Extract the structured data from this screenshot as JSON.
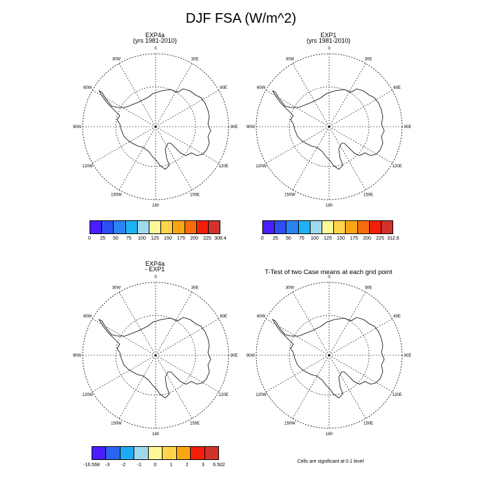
{
  "title": "DJF FSA (W/m^2)",
  "panels": [
    {
      "id": "p1",
      "title_lines": [
        "EXP4a",
        "(yrs 1981-2010)"
      ]
    },
    {
      "id": "p2",
      "title_lines": [
        "EXP1",
        "(yrs 1981-2010)"
      ]
    },
    {
      "id": "p3",
      "title_lines": [
        "EXP4a",
        "- EXP1"
      ]
    },
    {
      "id": "p4",
      "title_lines": [
        "T-Test of two Case means at each grid point"
      ]
    }
  ],
  "lon_labels": [
    "0",
    "30E",
    "60E",
    "90E",
    "120E",
    "150E",
    "180",
    "150W",
    "120W",
    "90W",
    "60W",
    "30W"
  ],
  "colorbars": [
    {
      "panel": "p1",
      "labels": [
        "0",
        "25",
        "50",
        "75",
        "100",
        "125",
        "150",
        "175",
        "200",
        "225",
        "308.4"
      ]
    },
    {
      "panel": "p2",
      "labels": [
        "0",
        "25",
        "50",
        "75",
        "100",
        "125",
        "150",
        "175",
        "200",
        "225",
        "312.8"
      ]
    },
    {
      "panel": "p3",
      "labels": [
        "-16.568",
        "-3",
        "-2",
        "-1",
        "0",
        "1",
        "2",
        "3",
        "6.502"
      ]
    }
  ],
  "colors": {
    "abs_scale": [
      "#4a1dfc",
      "#2c4ff2",
      "#2a84f4",
      "#1eb1f4",
      "#a0d8ee",
      "#fef79a",
      "#fed54a",
      "#fba515",
      "#f96c0b",
      "#f41f0b",
      "#d0322c"
    ],
    "diff_scale": [
      "#4a1dfc",
      "#2c64f2",
      "#1eabf4",
      "#a0d8ee",
      "#fef79a",
      "#fed54a",
      "#fba515",
      "#f41f0b",
      "#d0322c"
    ]
  },
  "footnote": "Cells are significant at 0.1 level"
}
